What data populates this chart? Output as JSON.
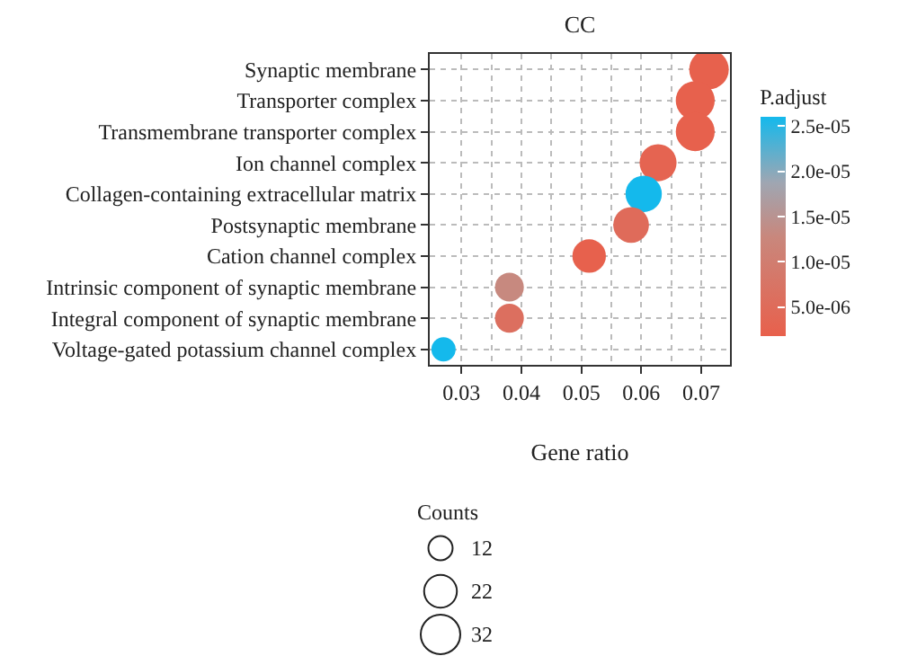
{
  "chart_data": {
    "type": "bubble",
    "title": "CC",
    "xlabel": "Gene ratio",
    "clabel": "P.adjust",
    "legend_title": "Counts",
    "orientation": "horizontal",
    "categories": [
      "Synaptic membrane",
      "Transporter complex",
      "Transmembrane transporter complex",
      "Ion channel complex",
      "Collagen-containing extracellular matrix",
      "Postsynaptic membrane",
      "Cation channel complex",
      "Intrinsic component of synaptic membrane",
      "Integral component of synaptic membrane",
      "Voltage-gated potassium channel complex"
    ],
    "values": [
      0.0713,
      0.069,
      0.069,
      0.0628,
      0.0604,
      0.0583,
      0.0513,
      0.038,
      0.038,
      0.027
    ],
    "sizes": [
      32,
      31,
      31,
      28,
      27,
      26,
      23,
      17,
      17,
      12
    ],
    "size_legend": [
      12,
      22,
      32
    ],
    "cvalues": [
      2e-06,
      2e-06,
      2e-06,
      3e-06,
      2.6e-05,
      5e-06,
      2e-06,
      1.3e-05,
      6e-06,
      2.6e-05
    ],
    "clim": [
      1.8e-06,
      2.6e-05
    ],
    "cticks": [
      {
        "value": 5e-06,
        "label": "5.0e-06"
      },
      {
        "value": 1e-05,
        "label": "1.0e-05"
      },
      {
        "value": 1.5e-05,
        "label": "1.5e-05"
      },
      {
        "value": 2e-05,
        "label": "2.0e-05"
      },
      {
        "value": 2.5e-05,
        "label": "2.5e-05"
      }
    ],
    "xlim": [
      0.0247,
      0.0748
    ],
    "xticks": [
      {
        "value": 0.03,
        "label": "0.03"
      },
      {
        "value": 0.04,
        "label": "0.04"
      },
      {
        "value": 0.05,
        "label": "0.05"
      },
      {
        "value": 0.06,
        "label": "0.06"
      },
      {
        "value": 0.07,
        "label": "0.07"
      }
    ],
    "grid": true
  }
}
